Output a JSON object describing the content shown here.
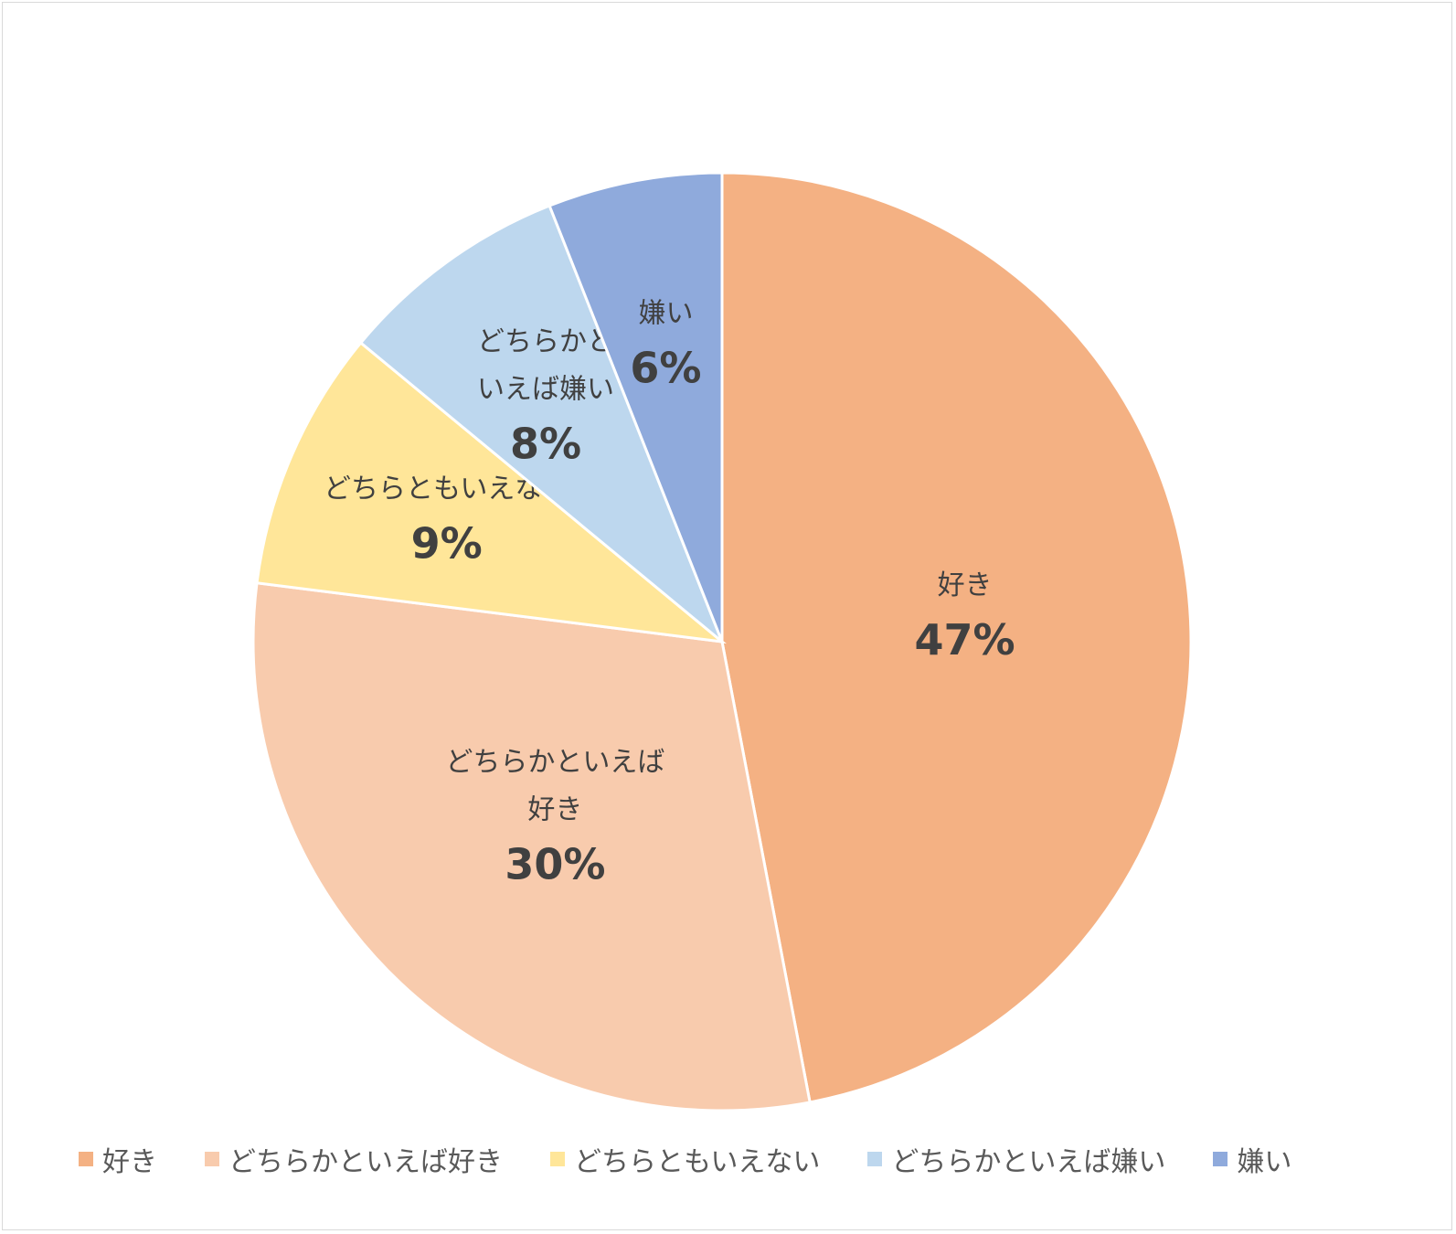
{
  "chart_data": {
    "type": "pie",
    "slices": [
      {
        "label": "好き",
        "label_lines": [
          "好き"
        ],
        "value": 47,
        "percent_label": "47%",
        "color": "#f4b183"
      },
      {
        "label": "どちらかといえば好き",
        "label_lines": [
          "どちらかといえば",
          "好き"
        ],
        "value": 30,
        "percent_label": "30%",
        "color": "#f8cbad"
      },
      {
        "label": "どちらともいえない",
        "label_lines": [
          "どちらともいえない"
        ],
        "value": 9,
        "percent_label": "9%",
        "color": "#ffe699"
      },
      {
        "label": "どちらかといえば嫌い",
        "label_lines": [
          "どちらかと",
          "いえば嫌い"
        ],
        "value": 8,
        "percent_label": "8%",
        "color": "#bdd7ee"
      },
      {
        "label": "嫌い",
        "label_lines": [
          "嫌い"
        ],
        "value": 6,
        "percent_label": "6%",
        "color": "#8faadc"
      }
    ],
    "legend": {
      "position": "bottom",
      "entries": [
        "好き",
        "どちらかといえば好き",
        "どちらともいえない",
        "どちらかといえば嫌い",
        "嫌い"
      ]
    }
  }
}
